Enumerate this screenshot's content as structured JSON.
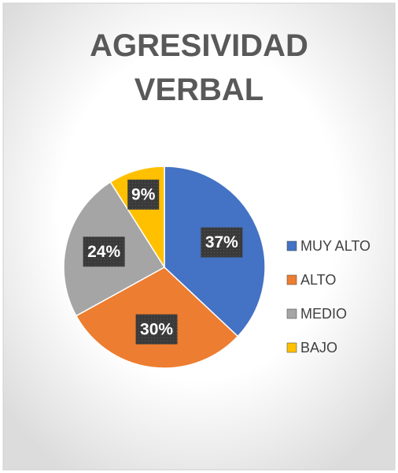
{
  "chart_data": {
    "type": "pie",
    "title": "AGRESIVIDAD VERBAL",
    "categories": [
      "MUY ALTO",
      "ALTO",
      "MEDIO",
      "BAJO"
    ],
    "values": [
      37,
      30,
      24,
      9
    ],
    "value_labels": [
      "37%",
      "30%",
      "24%",
      "9%"
    ],
    "colors": [
      "#4472c4",
      "#ed7d31",
      "#a5a5a5",
      "#ffc000"
    ],
    "legend": "right"
  }
}
